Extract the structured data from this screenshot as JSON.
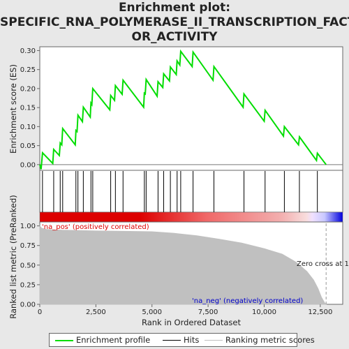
{
  "title_line1": "Enrichment plot:",
  "title_line2": "SPECIFIC_RNA_POLYMERASE_II_TRANSCRIPTION_FACT",
  "title_line3": "OR_ACTIVITY",
  "colors": {
    "enrichment_line": "#00dd00",
    "hits": "#000000",
    "ranking_fill": "#c0c0c0",
    "pos_label": "#dd0000",
    "neg_label": "#0000cc",
    "band_red": "#dd0000",
    "band_blue": "#0000dd"
  },
  "chart_data": {
    "type": "line",
    "x_label": "Rank in Ordered Dataset",
    "x_ticks": [
      "0",
      "2,500",
      "5,000",
      "7,500",
      "10,000",
      "12,500"
    ],
    "x_tick_values": [
      0,
      2500,
      5000,
      7500,
      10000,
      12500
    ],
    "xlim": [
      0,
      13500
    ],
    "top_panel": {
      "y_label": "Enrichment score (ES)",
      "ylim": [
        -0.015,
        0.31
      ],
      "y_ticks": [
        "0.00",
        "0.05",
        "0.10",
        "0.15",
        "0.20",
        "0.25",
        "0.30"
      ],
      "y_tick_values": [
        0,
        0.05,
        0.1,
        0.15,
        0.2,
        0.25,
        0.3
      ],
      "series_name": "Enrichment profile",
      "points": [
        [
          0,
          0.0
        ],
        [
          60,
          -0.012
        ],
        [
          120,
          0.031
        ],
        [
          580,
          0.003
        ],
        [
          620,
          0.04
        ],
        [
          870,
          0.024
        ],
        [
          910,
          0.057
        ],
        [
          980,
          0.052
        ],
        [
          1020,
          0.095
        ],
        [
          1580,
          0.052
        ],
        [
          1610,
          0.09
        ],
        [
          1660,
          0.087
        ],
        [
          1700,
          0.13
        ],
        [
          1900,
          0.113
        ],
        [
          1940,
          0.151
        ],
        [
          2250,
          0.125
        ],
        [
          2280,
          0.162
        ],
        [
          2320,
          0.158
        ],
        [
          2360,
          0.2
        ],
        [
          3120,
          0.144
        ],
        [
          3160,
          0.182
        ],
        [
          3330,
          0.169
        ],
        [
          3370,
          0.208
        ],
        [
          3670,
          0.185
        ],
        [
          3710,
          0.222
        ],
        [
          4630,
          0.151
        ],
        [
          4660,
          0.188
        ],
        [
          4700,
          0.186
        ],
        [
          4740,
          0.224
        ],
        [
          5230,
          0.18
        ],
        [
          5270,
          0.218
        ],
        [
          5480,
          0.203
        ],
        [
          5520,
          0.239
        ],
        [
          5780,
          0.22
        ],
        [
          5820,
          0.257
        ],
        [
          6080,
          0.237
        ],
        [
          6120,
          0.273
        ],
        [
          6240,
          0.262
        ],
        [
          6280,
          0.298
        ],
        [
          6790,
          0.258
        ],
        [
          6830,
          0.296
        ],
        [
          7720,
          0.222
        ],
        [
          7760,
          0.258
        ],
        [
          9060,
          0.151
        ],
        [
          9100,
          0.186
        ],
        [
          10000,
          0.114
        ],
        [
          10040,
          0.143
        ],
        [
          10860,
          0.075
        ],
        [
          10900,
          0.1
        ],
        [
          11530,
          0.052
        ],
        [
          11570,
          0.073
        ],
        [
          12330,
          0.011
        ],
        [
          12370,
          0.03
        ],
        [
          12760,
          0.0
        ]
      ]
    },
    "hits": [
      120,
      620,
      910,
      1020,
      1610,
      1700,
      1940,
      2280,
      2360,
      3160,
      3370,
      3710,
      4660,
      4740,
      5270,
      5520,
      5820,
      6120,
      6280,
      6830,
      7760,
      9100,
      10040,
      10900,
      11570,
      12370
    ],
    "bottom_panel": {
      "y_label_line1": "Ranked list metric (PreRanked)",
      "ylim": [
        0,
        1.05
      ],
      "y_ticks": [
        "0.00",
        "0.25",
        "0.50",
        "0.75",
        "1.00"
      ],
      "y_tick_values": [
        0,
        0.25,
        0.5,
        0.75,
        1.0
      ],
      "series_name": "Ranking metric scores",
      "curve": [
        [
          0,
          1.0
        ],
        [
          80,
          0.97
        ],
        [
          300,
          0.955
        ],
        [
          1000,
          0.945
        ],
        [
          2500,
          0.935
        ],
        [
          4000,
          0.93
        ],
        [
          5000,
          0.925
        ],
        [
          6000,
          0.905
        ],
        [
          7000,
          0.875
        ],
        [
          8000,
          0.83
        ],
        [
          9000,
          0.78
        ],
        [
          10000,
          0.71
        ],
        [
          10800,
          0.64
        ],
        [
          11400,
          0.54
        ],
        [
          11900,
          0.42
        ],
        [
          12200,
          0.31
        ],
        [
          12400,
          0.2
        ],
        [
          12550,
          0.09
        ],
        [
          12700,
          0.015
        ],
        [
          12760,
          0.0
        ]
      ],
      "pos_label": "'na_pos' (positively correlated)",
      "neg_label": "'na_neg' (negatively correlated)",
      "zero_cross_label": "Zero cross at 1",
      "zero_cross_x": 12760
    }
  },
  "legend": {
    "enrichment": "Enrichment profile",
    "hits": "Hits",
    "ranking": "Ranking metric scores"
  }
}
